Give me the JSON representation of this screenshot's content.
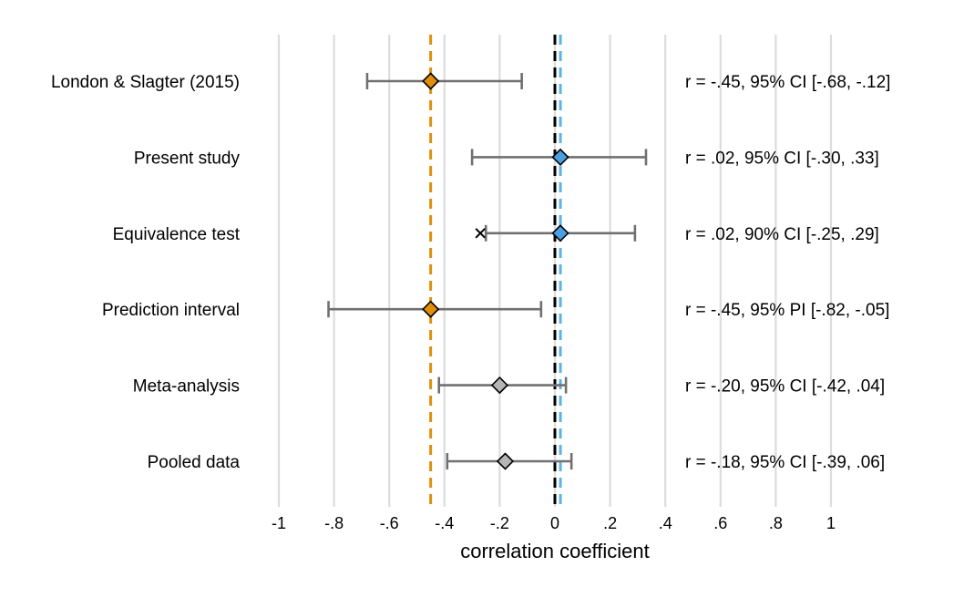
{
  "chart_data": {
    "type": "forest",
    "xlabel": "correlation coefficient",
    "xlim": [
      -1,
      1
    ],
    "xticks": [
      {
        "value": -1,
        "label": "-1"
      },
      {
        "value": -0.8,
        "label": "-.8"
      },
      {
        "value": -0.6,
        "label": "-.6"
      },
      {
        "value": -0.4,
        "label": "-.4"
      },
      {
        "value": -0.2,
        "label": "-.2"
      },
      {
        "value": 0,
        "label": "0"
      },
      {
        "value": 0.2,
        "label": ".2"
      },
      {
        "value": 0.4,
        "label": ".4"
      },
      {
        "value": 0.6,
        "label": ".6"
      },
      {
        "value": 0.8,
        "label": ".8"
      },
      {
        "value": 1,
        "label": "1"
      }
    ],
    "grid": true,
    "reference_lines": [
      {
        "value": -0.45,
        "color": "#e08e0b",
        "style": "dashed"
      },
      {
        "value": 0,
        "color": "#000000",
        "style": "dashed"
      },
      {
        "value": 0.02,
        "color": "#5ab4e5",
        "style": "dashed"
      }
    ],
    "rows": [
      {
        "label": "London & Slagter (2015)",
        "estimate": -0.45,
        "lower": -0.68,
        "upper": -0.12,
        "color": "#e08e0b",
        "stat": "r = -.45, 95% CI [-.68, -.12]"
      },
      {
        "label": "Present study",
        "estimate": 0.02,
        "lower": -0.3,
        "upper": 0.33,
        "color": "#4a9fe0",
        "stat": "r = .02, 95% CI [-.30, .33]"
      },
      {
        "label": "Equivalence test",
        "estimate": 0.02,
        "lower": -0.25,
        "upper": 0.29,
        "color": "#4a9fe0",
        "stat": "r = .02, 90% CI [-.25, .29]",
        "bound_marker": -0.27
      },
      {
        "label": "Prediction interval",
        "estimate": -0.45,
        "lower": -0.82,
        "upper": -0.05,
        "color": "#e08e0b",
        "stat": "r = -.45, 95% PI [-.82, -.05]"
      },
      {
        "label": "Meta-analysis",
        "estimate": -0.2,
        "lower": -0.42,
        "upper": 0.04,
        "color": "#b5b5b5",
        "stat": "r = -.20, 95% CI [-.42, .04]"
      },
      {
        "label": "Pooled data",
        "estimate": -0.18,
        "lower": -0.39,
        "upper": 0.06,
        "color": "#b5b5b5",
        "stat": "r = -.18, 95% CI [-.39, .06]"
      }
    ],
    "colors": {
      "grid": "#dcdcdc",
      "errorbar": "#707070",
      "marker_outline": "#000000"
    }
  }
}
